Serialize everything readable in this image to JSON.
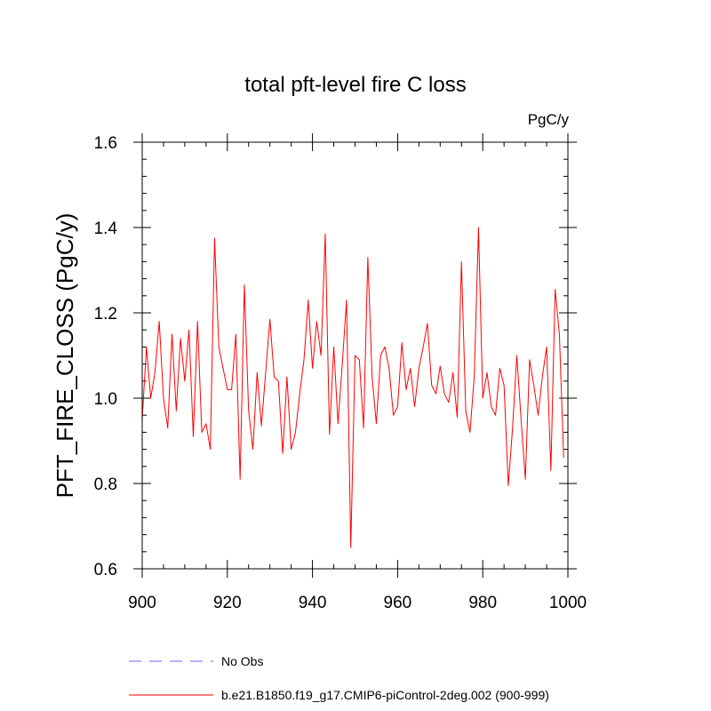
{
  "chart_data": {
    "type": "line",
    "title": "total pft-level fire C loss",
    "units_label": "PgC/y",
    "xlabel": "",
    "ylabel": "PFT_FIRE_CLOSS  (PgC/y)",
    "xlim": [
      900,
      1000
    ],
    "ylim": [
      0.6,
      1.6
    ],
    "xticks": [
      900,
      920,
      940,
      960,
      980,
      1000
    ],
    "yticks": [
      0.6,
      0.8,
      1.0,
      1.2,
      1.4,
      1.6
    ],
    "xtick_labels": [
      "900",
      "920",
      "940",
      "960",
      "980",
      "1000"
    ],
    "ytick_labels": [
      "0.6",
      "0.8",
      "1.0",
      "1.2",
      "1.4",
      "1.6"
    ],
    "grid": false,
    "legend_position": "bottom-left",
    "series": [
      {
        "name": "No Obs",
        "color": "#6666ff",
        "dash": "dashed",
        "x": [],
        "values": []
      },
      {
        "name": "b.e21.B1850.f19_g17.CMIP6-piControl-2deg.002 (900-999)",
        "color": "#ff0000",
        "dash": "solid",
        "x": [
          900,
          901,
          902,
          903,
          904,
          905,
          906,
          907,
          908,
          909,
          910,
          911,
          912,
          913,
          914,
          915,
          916,
          917,
          918,
          919,
          920,
          921,
          922,
          923,
          924,
          925,
          926,
          927,
          928,
          929,
          930,
          931,
          932,
          933,
          934,
          935,
          936,
          937,
          938,
          939,
          940,
          941,
          942,
          943,
          944,
          945,
          946,
          947,
          948,
          949,
          950,
          951,
          952,
          953,
          954,
          955,
          956,
          957,
          958,
          959,
          960,
          961,
          962,
          963,
          964,
          965,
          966,
          967,
          968,
          969,
          970,
          971,
          972,
          973,
          974,
          975,
          976,
          977,
          978,
          979,
          980,
          981,
          982,
          983,
          984,
          985,
          986,
          987,
          988,
          989,
          990,
          991,
          992,
          993,
          994,
          995,
          996,
          997,
          998,
          999
        ],
        "values": [
          0.95,
          1.12,
          1.0,
          1.06,
          1.18,
          1.0,
          0.93,
          1.15,
          0.97,
          1.14,
          1.04,
          1.16,
          0.91,
          1.18,
          0.92,
          0.94,
          0.88,
          1.375,
          1.12,
          1.07,
          1.02,
          1.02,
          1.15,
          0.81,
          1.265,
          0.97,
          0.88,
          1.06,
          0.935,
          1.06,
          1.185,
          1.05,
          1.04,
          0.87,
          1.05,
          0.88,
          0.92,
          1.01,
          1.09,
          1.23,
          1.07,
          1.18,
          1.1,
          1.385,
          0.915,
          1.12,
          0.94,
          1.08,
          1.23,
          0.65,
          1.1,
          1.09,
          0.93,
          1.33,
          1.05,
          0.94,
          1.1,
          1.12,
          1.07,
          0.96,
          0.98,
          1.13,
          1.02,
          1.07,
          0.98,
          1.07,
          1.12,
          1.175,
          1.03,
          1.01,
          1.075,
          1.01,
          0.99,
          1.06,
          0.955,
          1.32,
          0.97,
          0.92,
          1.05,
          1.4,
          1.0,
          1.06,
          0.98,
          0.96,
          1.07,
          1.03,
          0.795,
          0.93,
          1.1,
          0.95,
          0.81,
          1.09,
          1.03,
          0.96,
          1.05,
          1.12,
          0.83,
          1.255,
          1.15,
          0.86
        ]
      }
    ]
  }
}
